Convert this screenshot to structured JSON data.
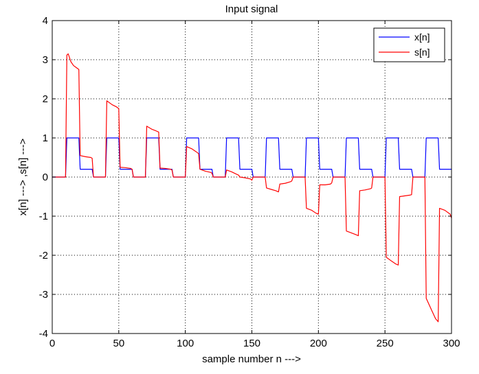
{
  "chart_data": {
    "type": "line",
    "title": "Input signal",
    "xlabel": "sample number n --->",
    "ylabel": "x[n] ---> ,s[n] --->",
    "xlim": [
      0,
      300
    ],
    "ylim": [
      -4,
      4
    ],
    "xticks": [
      0,
      50,
      100,
      150,
      200,
      250,
      300
    ],
    "yticks": [
      -4,
      -3,
      -2,
      -1,
      0,
      1,
      2,
      3,
      4
    ],
    "grid": true,
    "grid_style": "dotted",
    "legend_position": "top-right",
    "series": [
      {
        "name": "x[n]",
        "color": "#0000ff",
        "x": [
          0,
          10,
          11,
          20,
          21,
          30,
          31,
          40,
          41,
          50,
          51,
          60,
          61,
          70,
          71,
          80,
          81,
          90,
          91,
          100,
          101,
          110,
          111,
          120,
          121,
          130,
          131,
          140,
          141,
          150,
          151,
          160,
          161,
          170,
          171,
          180,
          181,
          190,
          191,
          200,
          201,
          210,
          211,
          220,
          221,
          230,
          231,
          240,
          241,
          250,
          251,
          260,
          261,
          270,
          271,
          280,
          281,
          290,
          291,
          300
        ],
        "y": [
          0,
          0,
          1,
          1,
          0.2,
          0.2,
          0,
          0,
          1,
          1,
          0.2,
          0.2,
          0,
          0,
          1,
          1,
          0.2,
          0.2,
          0,
          0,
          1,
          1,
          0.2,
          0.2,
          0,
          0,
          1,
          1,
          0.2,
          0.2,
          0,
          0,
          1,
          1,
          0.2,
          0.2,
          0,
          0,
          1,
          1,
          0.2,
          0.2,
          0,
          0,
          1,
          1,
          0.2,
          0.2,
          0,
          0,
          1,
          1,
          0.2,
          0.2,
          0,
          0,
          1,
          1,
          0.2,
          0.2
        ]
      },
      {
        "name": "s[n]",
        "color": "#ff0000",
        "x": [
          0,
          10,
          11,
          12,
          13,
          14,
          16,
          18,
          20,
          21,
          25,
          29,
          30,
          31,
          35,
          40,
          41,
          45,
          48,
          50,
          51,
          55,
          59,
          60,
          61,
          65,
          70,
          71,
          75,
          78,
          80,
          81,
          85,
          89,
          90,
          91,
          95,
          100,
          101,
          105,
          108,
          110,
          111,
          115,
          119,
          120,
          121,
          125,
          130,
          131,
          135,
          138,
          140,
          141,
          145,
          149,
          150,
          151,
          155,
          160,
          161,
          165,
          168,
          170,
          171,
          175,
          179,
          180,
          181,
          185,
          190,
          191,
          195,
          198,
          200,
          201,
          205,
          209,
          210,
          211,
          215,
          220,
          221,
          225,
          228,
          230,
          231,
          235,
          239,
          240,
          241,
          245,
          250,
          251,
          255,
          258,
          260,
          261,
          265,
          269,
          270,
          271,
          275,
          280,
          281,
          285,
          288,
          290,
          291,
          295,
          299,
          300
        ],
        "y": [
          0,
          0,
          3.12,
          3.15,
          3.05,
          2.95,
          2.85,
          2.8,
          2.75,
          0.55,
          0.52,
          0.5,
          0.48,
          0,
          0,
          0,
          1.95,
          1.85,
          1.8,
          1.75,
          0.25,
          0.24,
          0.22,
          0.2,
          0,
          0,
          0,
          1.3,
          1.22,
          1.18,
          1.15,
          0.23,
          0.22,
          0.2,
          0.18,
          0,
          0,
          0,
          0.78,
          0.72,
          0.65,
          0.6,
          0.2,
          0.15,
          0.12,
          0.1,
          0,
          0,
          0,
          0.18,
          0.13,
          0.08,
          0.05,
          0,
          -0.02,
          -0.05,
          -0.08,
          0,
          0,
          0,
          -0.28,
          -0.32,
          -0.35,
          -0.38,
          -0.18,
          -0.16,
          -0.12,
          -0.1,
          0,
          0,
          0,
          -0.8,
          -0.85,
          -0.92,
          -0.95,
          -0.2,
          -0.2,
          -0.18,
          -0.15,
          0,
          0,
          0,
          -1.38,
          -1.43,
          -1.47,
          -1.5,
          -0.35,
          -0.33,
          -0.3,
          -0.28,
          0,
          0,
          0,
          -2.05,
          -2.15,
          -2.22,
          -2.25,
          -0.5,
          -0.48,
          -0.46,
          -0.45,
          0,
          0,
          0,
          -3.1,
          -3.4,
          -3.62,
          -3.7,
          -0.8,
          -0.85,
          -0.95,
          -1.05
        ]
      }
    ]
  }
}
